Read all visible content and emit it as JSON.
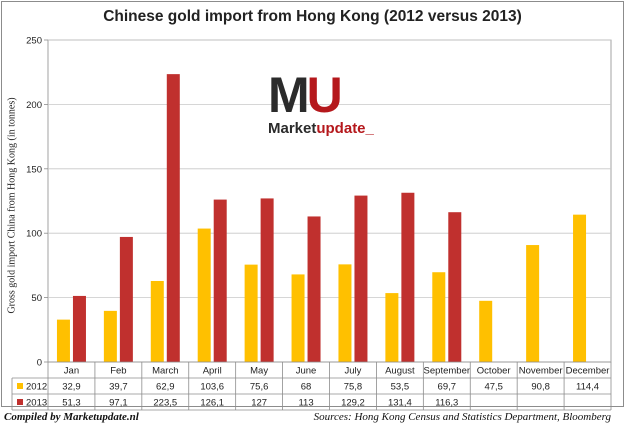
{
  "footer": {
    "compiled": "Compiled by Marketupdate.nl",
    "sources": "Sources: Hong Kong Census and Statistics Department, Bloomberg"
  },
  "logo": {
    "mark_m": "M",
    "mark_u": "U",
    "word_a": "Market",
    "word_b": "update_"
  },
  "colors": {
    "series_2012": "#ffc000",
    "series_2013": "#c0302e",
    "grid": "#c8c8c8",
    "border": "#8c8c8c"
  },
  "chart_data": {
    "type": "bar",
    "title": "Chinese gold import from Hong Kong (2012 versus 2013)",
    "ylabel": "Gross gold import China from Hong Kong (in tonnes)",
    "ylim": [
      0,
      250
    ],
    "yticks": [
      0,
      50,
      100,
      150,
      200,
      250
    ],
    "grid": true,
    "categories": [
      "Jan",
      "Feb",
      "March",
      "April",
      "May",
      "June",
      "July",
      "August",
      "September",
      "October",
      "November",
      "December"
    ],
    "series": [
      {
        "name": "2012",
        "values": [
          32.9,
          39.7,
          62.9,
          103.6,
          75.6,
          68,
          75.8,
          53.5,
          69.7,
          47.5,
          90.8,
          114.4
        ],
        "labels": [
          "32,9",
          "39,7",
          "62,9",
          "103,6",
          "75,6",
          "68",
          "75,8",
          "53,5",
          "69,7",
          "47,5",
          "90,8",
          "114,4"
        ]
      },
      {
        "name": "2013",
        "values": [
          51.3,
          97.1,
          223.5,
          126.1,
          127,
          113,
          129.2,
          131.4,
          116.3,
          null,
          null,
          null
        ],
        "labels": [
          "51,3",
          "97,1",
          "223,5",
          "126,1",
          "127",
          "113",
          "129,2",
          "131,4",
          "116,3",
          "",
          "",
          ""
        ]
      }
    ],
    "legend": "data-table"
  }
}
